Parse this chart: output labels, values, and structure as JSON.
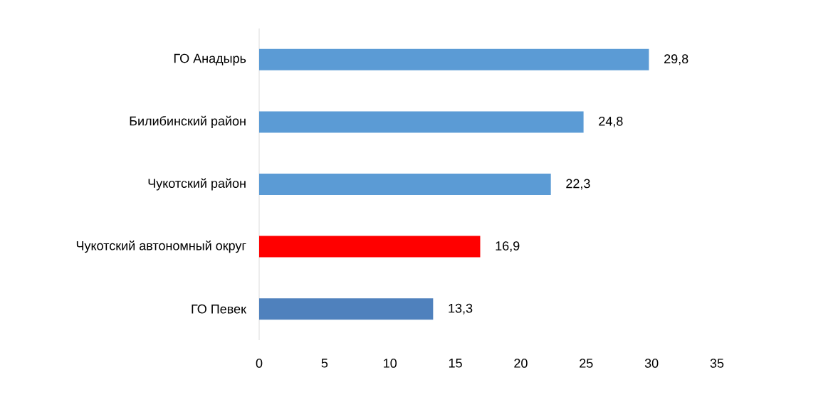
{
  "chart_data": {
    "type": "bar",
    "orientation": "horizontal",
    "categories": [
      "ГО Анадырь",
      "Билибинский район",
      "Чукотский район",
      "Чукотский автономный округ",
      "ГО Певек"
    ],
    "values": [
      29.8,
      24.8,
      22.3,
      16.9,
      13.3
    ],
    "value_labels": [
      "29,8",
      "24,8",
      "22,3",
      "16,9",
      "13,3"
    ],
    "colors": [
      "#5b9bd5",
      "#5b9bd5",
      "#5b9bd5",
      "#ff0000",
      "#4f81bd"
    ],
    "xlim": [
      0,
      35
    ],
    "xticks": [
      0,
      5,
      10,
      15,
      20,
      25,
      30,
      35
    ]
  }
}
